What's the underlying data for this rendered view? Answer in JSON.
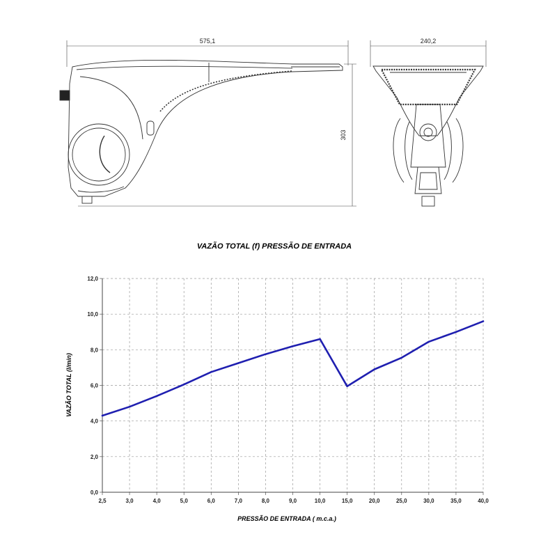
{
  "drawings": {
    "width_dimension": "575,1",
    "height_dimension": "303",
    "front_width_dimension": "240,2"
  },
  "chart_data": {
    "type": "line",
    "title": "VAZÃO TOTAL (f) PRESSÃO DE ENTRADA",
    "xlabel": "PRESSÃO DE ENTRADA ( m.c.a.)",
    "ylabel": "VAZÃO TOTAL (l/min)",
    "categories": [
      "2,5",
      "3,0",
      "4,0",
      "5,0",
      "6,0",
      "7,0",
      "8,0",
      "9,0",
      "10,0",
      "15,0",
      "20,0",
      "25,0",
      "30,0",
      "35,0",
      "40,0"
    ],
    "y_ticks": [
      "0,0",
      "2,0",
      "4,0",
      "6,0",
      "8,0",
      "10,0",
      "12,0"
    ],
    "ylim": [
      0,
      12
    ],
    "grid": true,
    "series_color": "#1f1fb0",
    "series": [
      {
        "values": [
          4.3,
          4.8,
          5.4,
          6.05,
          6.75,
          7.25,
          7.75,
          8.2,
          8.6,
          5.95,
          6.9,
          7.55,
          8.45,
          9.0,
          9.6
        ]
      }
    ]
  }
}
